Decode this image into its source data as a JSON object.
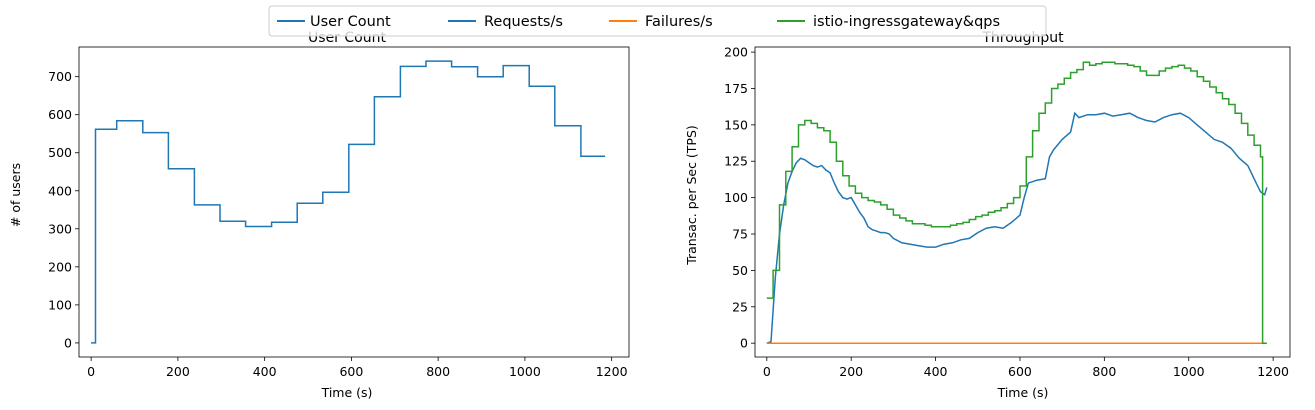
{
  "legend": {
    "placement": "top-center",
    "entries": [
      {
        "label": "User Count",
        "color": "#1f77b4"
      },
      {
        "label": "Requests/s",
        "color": "#1f77b4"
      },
      {
        "label": "Failures/s",
        "color": "#ff7f0e"
      },
      {
        "label": "istio-ingressgateway&qps",
        "color": "#2ca02c"
      }
    ]
  },
  "chart_data": [
    {
      "type": "line",
      "title": "User Count",
      "xlabel": "Time (s)",
      "ylabel": "# of users",
      "xlim": [
        -28,
        1240
      ],
      "ylim": [
        -37,
        778
      ],
      "xticks": [
        0,
        200,
        400,
        600,
        800,
        1000,
        1200
      ],
      "yticks": [
        0,
        100,
        200,
        300,
        400,
        500,
        600,
        700
      ],
      "grid": false,
      "series": [
        {
          "name": "User Count",
          "color": "#1f77b4",
          "step": true,
          "x": [
            0,
            10,
            59,
            119,
            178,
            238,
            297,
            356,
            416,
            475,
            534,
            594,
            653,
            713,
            772,
            831,
            891,
            950,
            1010,
            1069,
            1129,
            1185
          ],
          "y": [
            0,
            562,
            584,
            553,
            458,
            363,
            320,
            306,
            317,
            367,
            396,
            522,
            647,
            727,
            741,
            726,
            700,
            729,
            675,
            571,
            491,
            491
          ]
        }
      ]
    },
    {
      "type": "line",
      "title": "Throughput",
      "xlabel": "Time (s)",
      "ylabel": "Transac. per Sec (TPS)",
      "xlim": [
        -28,
        1240
      ],
      "ylim": [
        -9.5,
        203.5
      ],
      "xticks": [
        0,
        200,
        400,
        600,
        800,
        1000,
        1200
      ],
      "yticks": [
        0,
        25,
        50,
        75,
        100,
        125,
        150,
        175,
        200
      ],
      "grid": false,
      "series": [
        {
          "name": "Requests/s",
          "color": "#1f77b4",
          "step": false,
          "x": [
            0,
            10,
            20,
            30,
            40,
            50,
            60,
            70,
            80,
            90,
            100,
            110,
            120,
            130,
            140,
            150,
            160,
            170,
            180,
            190,
            200,
            210,
            220,
            230,
            240,
            250,
            260,
            270,
            280,
            290,
            300,
            320,
            340,
            360,
            380,
            400,
            420,
            440,
            460,
            480,
            500,
            520,
            540,
            560,
            580,
            600,
            610,
            620,
            640,
            660,
            670,
            680,
            700,
            720,
            730,
            740,
            760,
            780,
            800,
            820,
            840,
            860,
            880,
            900,
            920,
            940,
            960,
            980,
            1000,
            1020,
            1040,
            1060,
            1080,
            1100,
            1120,
            1140,
            1160,
            1170,
            1180,
            1185
          ],
          "y": [
            0,
            1,
            45,
            75,
            95,
            110,
            118,
            124,
            127,
            126,
            124,
            122,
            121,
            122,
            119,
            117,
            110,
            104,
            100,
            99,
            100,
            95,
            90,
            86,
            80,
            78,
            77,
            76,
            76,
            75,
            72,
            69,
            68,
            67,
            66,
            66,
            68,
            69,
            71,
            72,
            76,
            79,
            80,
            79,
            83,
            88,
            100,
            110,
            112,
            113,
            128,
            133,
            140,
            145,
            158,
            155,
            157,
            157,
            158,
            156,
            157,
            158,
            155,
            153,
            152,
            155,
            157,
            158,
            155,
            150,
            145,
            140,
            138,
            134,
            127,
            122,
            110,
            104,
            102,
            107
          ]
        },
        {
          "name": "Failures/s",
          "color": "#ff7f0e",
          "step": false,
          "x": [
            0,
            1185
          ],
          "y": [
            0,
            0
          ]
        },
        {
          "name": "istio-ingressgateway&qps",
          "color": "#2ca02c",
          "step": true,
          "x": [
            0,
            15,
            30,
            45,
            60,
            75,
            90,
            105,
            120,
            135,
            150,
            165,
            180,
            195,
            210,
            225,
            240,
            255,
            270,
            285,
            300,
            315,
            330,
            345,
            360,
            375,
            390,
            405,
            420,
            435,
            450,
            465,
            480,
            495,
            510,
            525,
            540,
            555,
            570,
            585,
            600,
            615,
            630,
            645,
            660,
            675,
            690,
            705,
            720,
            735,
            750,
            765,
            780,
            795,
            810,
            825,
            840,
            855,
            870,
            885,
            900,
            915,
            930,
            945,
            960,
            975,
            990,
            1005,
            1020,
            1035,
            1050,
            1065,
            1080,
            1095,
            1110,
            1125,
            1140,
            1155,
            1170,
            1175,
            1185
          ],
          "y": [
            31,
            50,
            95,
            118,
            135,
            150,
            153,
            151,
            148,
            146,
            138,
            125,
            115,
            108,
            103,
            100,
            98,
            97,
            95,
            92,
            88,
            86,
            84,
            82,
            82,
            81,
            80,
            80,
            80,
            81,
            82,
            83,
            85,
            87,
            88,
            90,
            91,
            93,
            96,
            100,
            108,
            128,
            146,
            158,
            165,
            175,
            178,
            182,
            186,
            188,
            193,
            191,
            192,
            193,
            193,
            192,
            192,
            191,
            190,
            187,
            184,
            184,
            187,
            189,
            190,
            191,
            189,
            187,
            183,
            180,
            176,
            172,
            168,
            164,
            158,
            151,
            143,
            136,
            128,
            0,
            0
          ]
        }
      ]
    }
  ]
}
